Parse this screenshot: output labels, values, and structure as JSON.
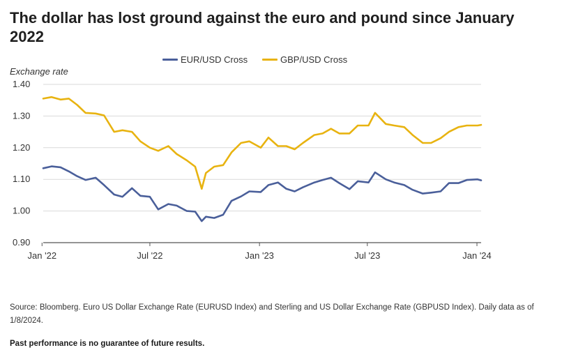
{
  "title": "The dollar has lost ground against the euro and pound since January 2022",
  "source": "Source: Bloomberg. Euro US Dollar Exchange Rate (EURUSD Index) and Sterling and US Dollar Exchange Rate (GBPUSD Index). Daily data as of 1/8/2024.",
  "disclaimer": "Past performance is no guarantee of future results.",
  "colors": {
    "eur": "#4a5f9a",
    "gbp": "#e8b310",
    "grid": "#d9d9d9",
    "axis": "#555555"
  },
  "chart_data": {
    "type": "line",
    "title": "The dollar has lost ground against the euro and pound since January 2022",
    "ylabel": "Exchange rate",
    "xlabel": "",
    "ylim": [
      0.9,
      1.4
    ],
    "yticks": [
      "1.40",
      "1.30",
      "1.20",
      "1.10",
      "1.00",
      "0.90"
    ],
    "ytick_values": [
      1.4,
      1.3,
      1.2,
      1.1,
      1.0,
      0.9
    ],
    "xlim": [
      "2022-01-03",
      "2024-01-08"
    ],
    "xticks": [
      "Jan '22",
      "Jul '22",
      "Jan '23",
      "Jul '23",
      "Jan '24"
    ],
    "xtick_dates": [
      "2022-01-01",
      "2022-07-01",
      "2023-01-01",
      "2023-07-01",
      "2024-01-01"
    ],
    "grid": true,
    "legend_position": "top-center",
    "x": [
      "2022-01-03",
      "2022-01-17",
      "2022-02-01",
      "2022-02-15",
      "2022-03-01",
      "2022-03-15",
      "2022-04-01",
      "2022-04-15",
      "2022-05-02",
      "2022-05-16",
      "2022-06-01",
      "2022-06-15",
      "2022-07-01",
      "2022-07-15",
      "2022-08-01",
      "2022-08-15",
      "2022-09-01",
      "2022-09-15",
      "2022-09-26",
      "2022-10-03",
      "2022-10-17",
      "2022-11-01",
      "2022-11-15",
      "2022-12-01",
      "2022-12-15",
      "2023-01-03",
      "2023-01-16",
      "2023-02-01",
      "2023-02-15",
      "2023-03-01",
      "2023-03-15",
      "2023-04-03",
      "2023-04-17",
      "2023-05-01",
      "2023-05-15",
      "2023-06-01",
      "2023-06-15",
      "2023-07-03",
      "2023-07-14",
      "2023-08-01",
      "2023-08-15",
      "2023-09-01",
      "2023-09-15",
      "2023-10-02",
      "2023-10-16",
      "2023-11-01",
      "2023-11-15",
      "2023-12-01",
      "2023-12-15",
      "2024-01-02",
      "2024-01-08"
    ],
    "series": [
      {
        "name": "EUR/USD Cross",
        "values": [
          1.135,
          1.141,
          1.138,
          1.125,
          1.11,
          1.098,
          1.105,
          1.082,
          1.052,
          1.045,
          1.072,
          1.048,
          1.045,
          1.005,
          1.022,
          1.017,
          1.0,
          0.998,
          0.968,
          0.982,
          0.978,
          0.988,
          1.032,
          1.046,
          1.062,
          1.06,
          1.082,
          1.09,
          1.07,
          1.062,
          1.075,
          1.09,
          1.098,
          1.105,
          1.088,
          1.069,
          1.094,
          1.09,
          1.122,
          1.1,
          1.09,
          1.082,
          1.067,
          1.055,
          1.058,
          1.062,
          1.088,
          1.088,
          1.098,
          1.1,
          1.097
        ]
      },
      {
        "name": "GBP/USD Cross",
        "values": [
          1.355,
          1.36,
          1.352,
          1.355,
          1.335,
          1.31,
          1.308,
          1.302,
          1.25,
          1.255,
          1.25,
          1.22,
          1.2,
          1.19,
          1.205,
          1.18,
          1.16,
          1.14,
          1.07,
          1.12,
          1.14,
          1.145,
          1.185,
          1.215,
          1.22,
          1.2,
          1.232,
          1.205,
          1.205,
          1.195,
          1.215,
          1.24,
          1.245,
          1.26,
          1.245,
          1.245,
          1.27,
          1.27,
          1.31,
          1.275,
          1.27,
          1.265,
          1.24,
          1.215,
          1.215,
          1.23,
          1.25,
          1.265,
          1.27,
          1.27,
          1.272
        ]
      }
    ]
  },
  "legend": [
    {
      "label": "EUR/USD Cross",
      "color": "#4a5f9a"
    },
    {
      "label": "GBP/USD Cross",
      "color": "#e8b310"
    }
  ]
}
